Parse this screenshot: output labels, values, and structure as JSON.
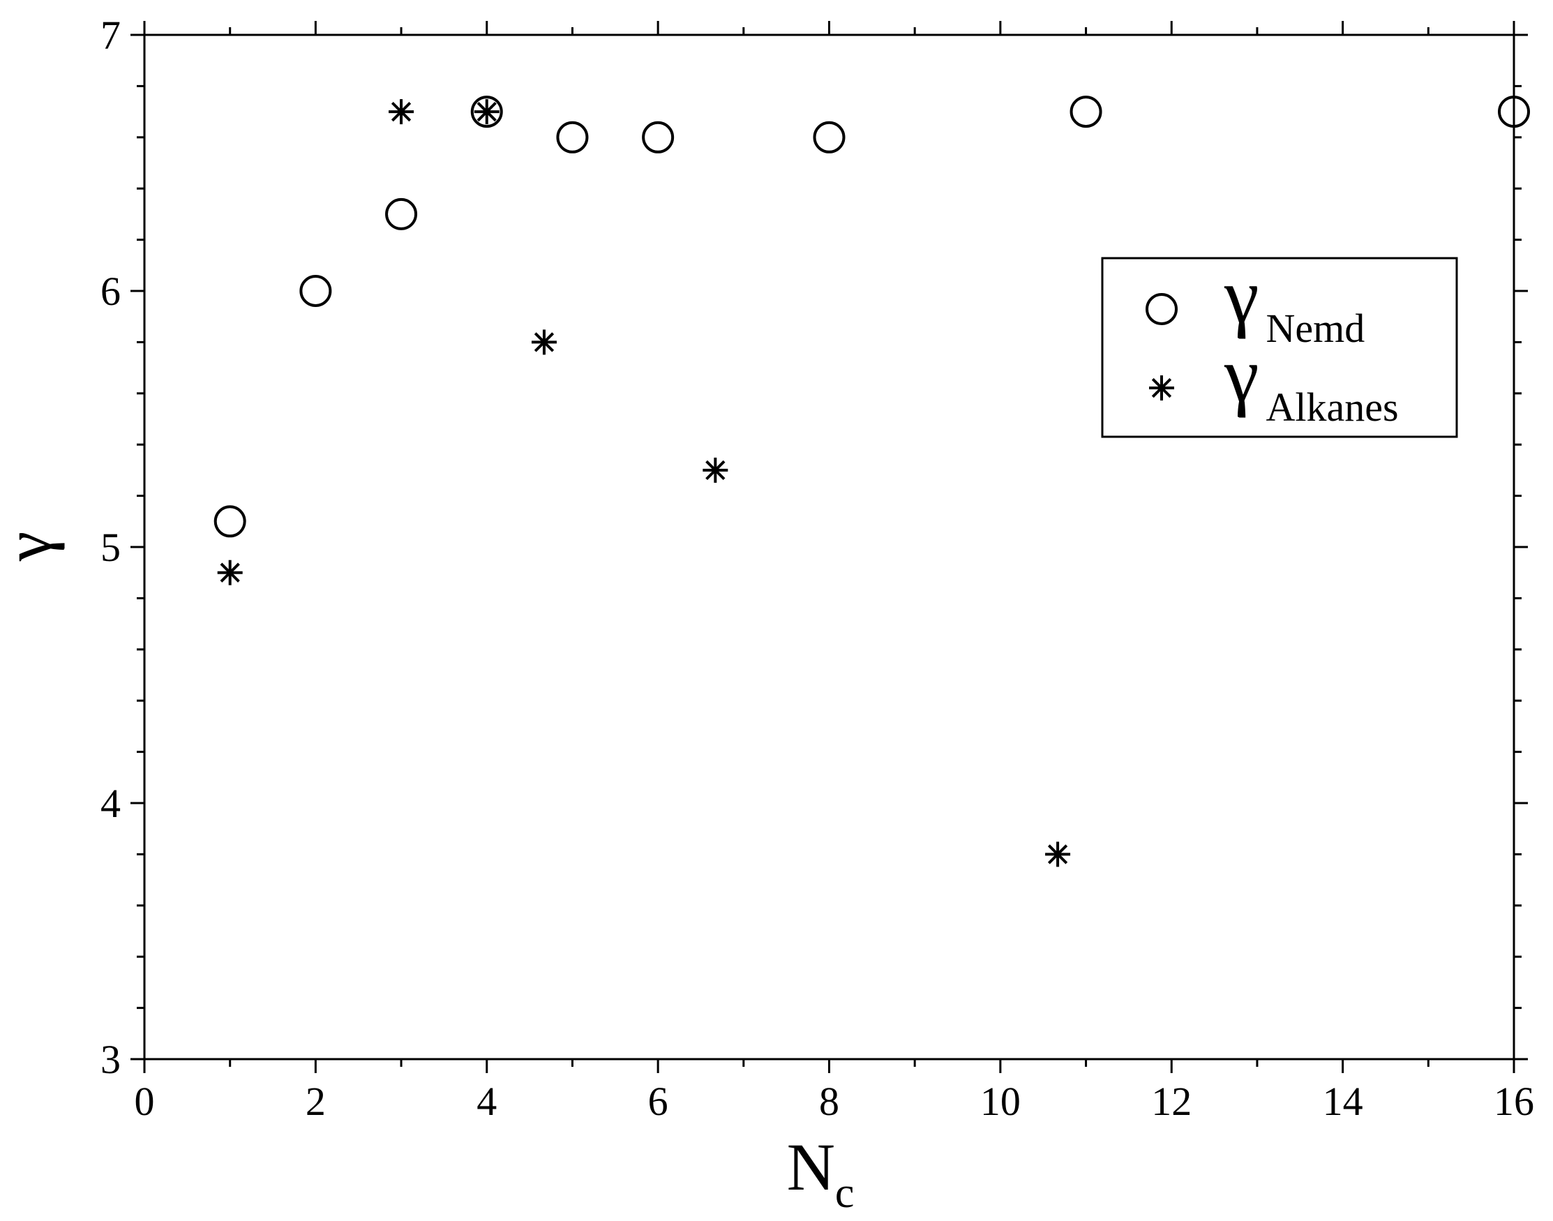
{
  "chart_data": {
    "type": "scatter",
    "xlabel": "N",
    "xlabel_sub": "c",
    "ylabel": "γ",
    "xlim": [
      0,
      16
    ],
    "ylim": [
      3,
      7
    ],
    "x_ticks": [
      "0",
      "2",
      "4",
      "6",
      "8",
      "10",
      "12",
      "14",
      "16"
    ],
    "y_ticks": [
      "3",
      "4",
      "5",
      "6",
      "7"
    ],
    "grid": false,
    "legend_position": "top-right",
    "series": [
      {
        "name": "γ",
        "name_sub": "Nemd",
        "marker": "open-circle",
        "points": [
          {
            "x": 1,
            "y": 5.1
          },
          {
            "x": 2,
            "y": 6.0
          },
          {
            "x": 3,
            "y": 6.3
          },
          {
            "x": 4,
            "y": 6.7
          },
          {
            "x": 5,
            "y": 6.6
          },
          {
            "x": 6,
            "y": 6.6
          },
          {
            "x": 8,
            "y": 6.6
          },
          {
            "x": 11,
            "y": 6.7
          },
          {
            "x": 16,
            "y": 6.7
          }
        ]
      },
      {
        "name": "γ",
        "name_sub": "Alkanes",
        "marker": "asterisk",
        "points": [
          {
            "x": 1,
            "y": 4.9
          },
          {
            "x": 3,
            "y": 6.7
          },
          {
            "x": 4,
            "y": 6.7
          },
          {
            "x": 4.67,
            "y": 5.8
          },
          {
            "x": 6.67,
            "y": 5.3
          },
          {
            "x": 10.67,
            "y": 3.8
          }
        ]
      }
    ]
  }
}
